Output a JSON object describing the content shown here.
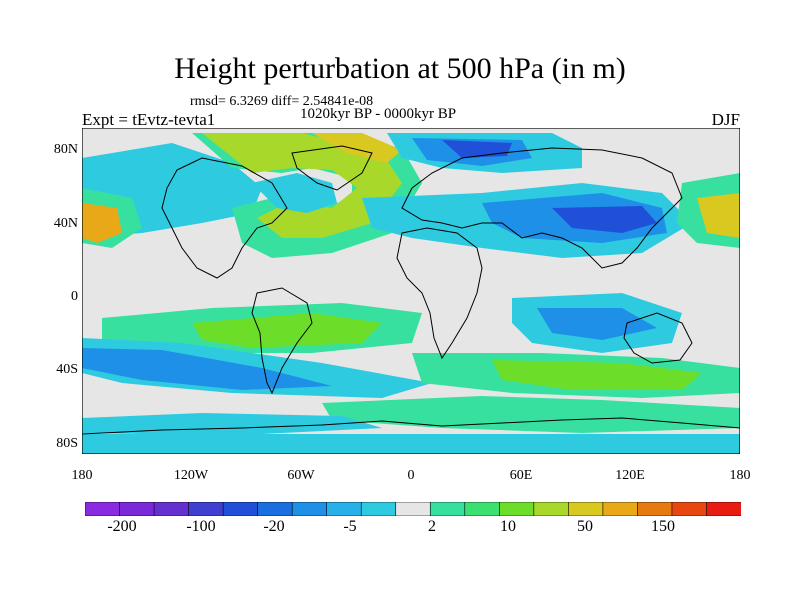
{
  "title": "Height perturbation at 500 hPa (in m)",
  "stats": "rmsd= 6.3269 diff= 2.54841e-08",
  "subtitle": "1020kyr BP - 0000kyr BP",
  "experiment": "Expt = tEvtz-tevta1",
  "season": "DJF",
  "y_ticks": [
    "80N",
    "40N",
    "0",
    "40S",
    "80S"
  ],
  "x_ticks": [
    "180",
    "120W",
    "60W",
    "0",
    "60E",
    "120E",
    "180"
  ],
  "colorbar": {
    "colors": [
      "#8a2be2",
      "#7a28d8",
      "#6430d0",
      "#4040d0",
      "#2050d8",
      "#1a6ee0",
      "#1e90e8",
      "#28b0e8",
      "#2ecbe0",
      "#e6e6e6",
      "#38e0a0",
      "#3ce070",
      "#6cde2a",
      "#a8d82a",
      "#d8c820",
      "#e8a818",
      "#e87810",
      "#e84810",
      "#e81c10"
    ],
    "labels": [
      "-200",
      "-100",
      "-20",
      "-5",
      "2",
      "10",
      "50",
      "150"
    ]
  },
  "palette": {
    "strong_neg": "#2050d8",
    "neg": "#1e90e8",
    "weak_neg": "#2ecbe0",
    "neutral": "#e6e6e6",
    "weak_pos": "#38e0a0",
    "pos": "#6cde2a",
    "strong_pos": "#a8d82a",
    "warm": "#d8c820",
    "hot": "#e8a818"
  }
}
